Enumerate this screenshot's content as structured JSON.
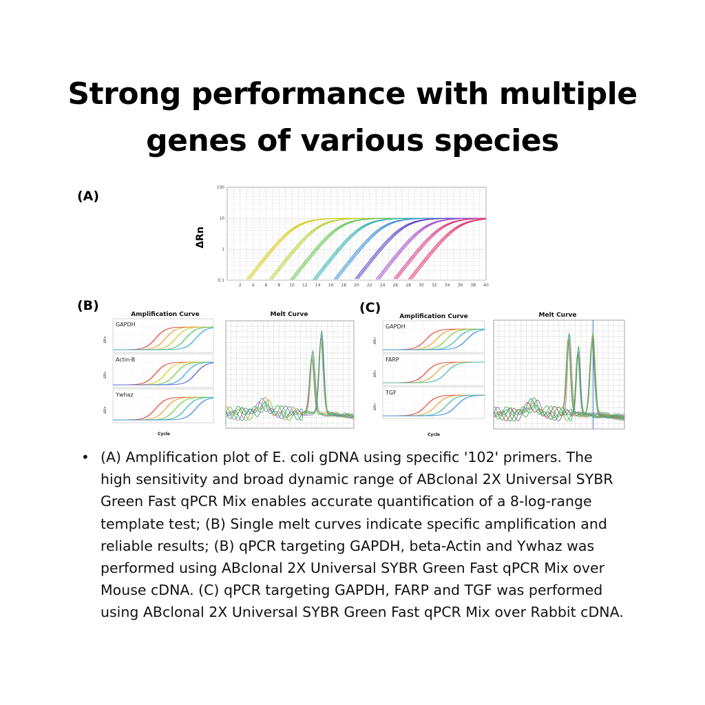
{
  "title": {
    "line1": "Strong performance with multiple",
    "line2": "genes of various species"
  },
  "panels": {
    "A": "(A)",
    "B": "(B)",
    "C": "(C)"
  },
  "caption": "(A) Amplification plot of E. coli gDNA using specific '102' primers. The high sensitivity and broad dynamic range of ABclonal 2X Universal SYBR Green Fast qPCR Mix enables accurate quantification of a 8-log-range template test; (B) Single melt curves indicate specific amplification and reliable results; (B) qPCR targeting GAPDH, beta-Actin and Ywhaz was performed using ABclonal 2X Universal SYBR Green Fast qPCR Mix over Mouse cDNA. (C) qPCR targeting GAPDH, FARP and TGF was performed using ABclonal 2X Universal SYBR Green Fast qPCR Mix over Rabbit cDNA.",
  "chart_data": [
    {
      "type": "line",
      "panel": "A",
      "ylabel": "ΔRn",
      "yscale": "log",
      "ylim": [
        0.1,
        100
      ],
      "xlim": [
        0,
        40
      ],
      "yticks": [
        "100",
        "10",
        "1",
        "0.1"
      ],
      "xticks": [
        "2",
        "4",
        "6",
        "8",
        "10",
        "12",
        "14",
        "16",
        "18",
        "20",
        "22",
        "24",
        "26",
        "28",
        "30",
        "32",
        "34",
        "36",
        "38",
        "40"
      ],
      "colors": [
        "#d4cc1a",
        "#b7d437",
        "#64c74f",
        "#2fb3b0",
        "#3a8fd8",
        "#5a3fc4",
        "#a24bc9",
        "#d8357f",
        "#e0306a"
      ],
      "series": [
        {
          "midpoint_cycle": 10.5
        },
        {
          "midpoint_cycle": 14.0
        },
        {
          "midpoint_cycle": 17.3
        },
        {
          "midpoint_cycle": 20.8
        },
        {
          "midpoint_cycle": 24.0
        },
        {
          "midpoint_cycle": 27.2
        },
        {
          "midpoint_cycle": 30.5
        },
        {
          "midpoint_cycle": 33.2
        },
        {
          "midpoint_cycle": 35.5
        }
      ],
      "plateau": 10
    },
    {
      "type": "line",
      "panel": "B",
      "title": "Amplification Curve",
      "xlabel": "Cycle",
      "ylabel": "ΔRn",
      "genes": [
        "GAPDH",
        "Actin-B",
        "Ywhaz"
      ]
    },
    {
      "type": "line",
      "panel": "B",
      "title": "Melt Curve"
    },
    {
      "type": "line",
      "panel": "C",
      "title": "Amplification Curve",
      "xlabel": "Cycle",
      "ylabel": "ΔRn",
      "genes": [
        "GAPDH",
        "FARP",
        "TGF"
      ]
    },
    {
      "type": "line",
      "panel": "C",
      "title": "Melt Curve"
    }
  ]
}
